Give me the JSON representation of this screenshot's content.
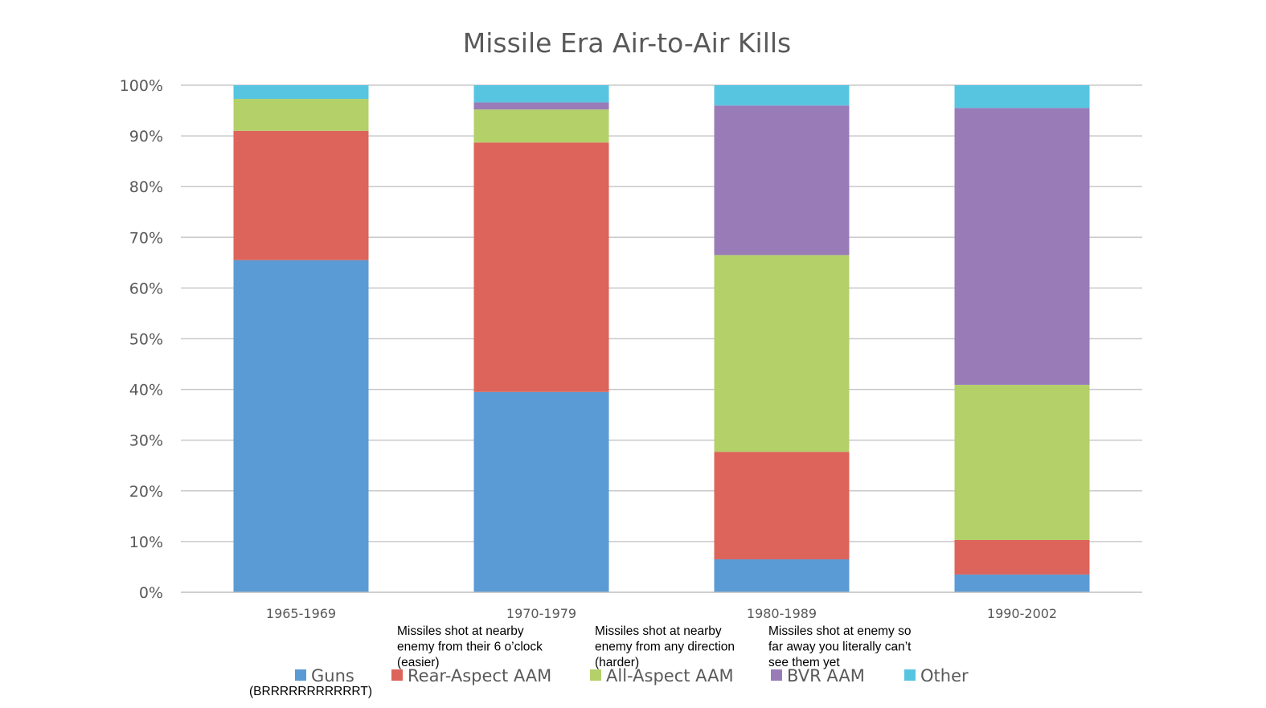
{
  "chart_data": {
    "type": "bar",
    "stacked": true,
    "percent": true,
    "title": "Missile Era Air-to-Air Kills",
    "xlabel": "",
    "ylabel": "",
    "ylim": [
      0,
      100
    ],
    "y_ticks": [
      "0%",
      "10%",
      "20%",
      "30%",
      "40%",
      "50%",
      "60%",
      "70%",
      "80%",
      "90%",
      "100%"
    ],
    "grid": true,
    "legend_position": "bottom",
    "categories": [
      "1965-1969",
      "1970-1979",
      "1980-1989",
      "1990-2002"
    ],
    "series": [
      {
        "name": "Guns",
        "color": "#5b9bd5",
        "values": [
          65.5,
          39.5,
          6.5,
          3.5
        ]
      },
      {
        "name": "Rear-Aspect AAM",
        "color": "#dc645a",
        "values": [
          25.5,
          49.2,
          21.2,
          6.8
        ]
      },
      {
        "name": "All-Aspect AAM",
        "color": "#b4d069",
        "values": [
          6.3,
          6.5,
          38.8,
          30.6
        ]
      },
      {
        "name": "BVR AAM",
        "color": "#997cb7",
        "values": [
          0,
          1.4,
          29.5,
          54.6
        ]
      },
      {
        "name": "Other",
        "color": "#58c5e0",
        "values": [
          2.7,
          3.4,
          4.0,
          4.5
        ]
      }
    ],
    "annotations": [
      {
        "series": "Guns",
        "lines": [
          "(BRRRRRRRRRRRT)"
        ]
      },
      {
        "series": "Rear-Aspect AAM",
        "lines": [
          "Missiles shot at nearby",
          "enemy from their 6 o’clock",
          "(easier)"
        ]
      },
      {
        "series": "All-Aspect AAM",
        "lines": [
          "Missiles shot at nearby",
          "enemy from any direction",
          "(harder)"
        ]
      },
      {
        "series": "BVR AAM",
        "lines": [
          "Missiles shot at enemy so",
          "far away you literally can’t",
          "see them yet"
        ]
      }
    ]
  }
}
